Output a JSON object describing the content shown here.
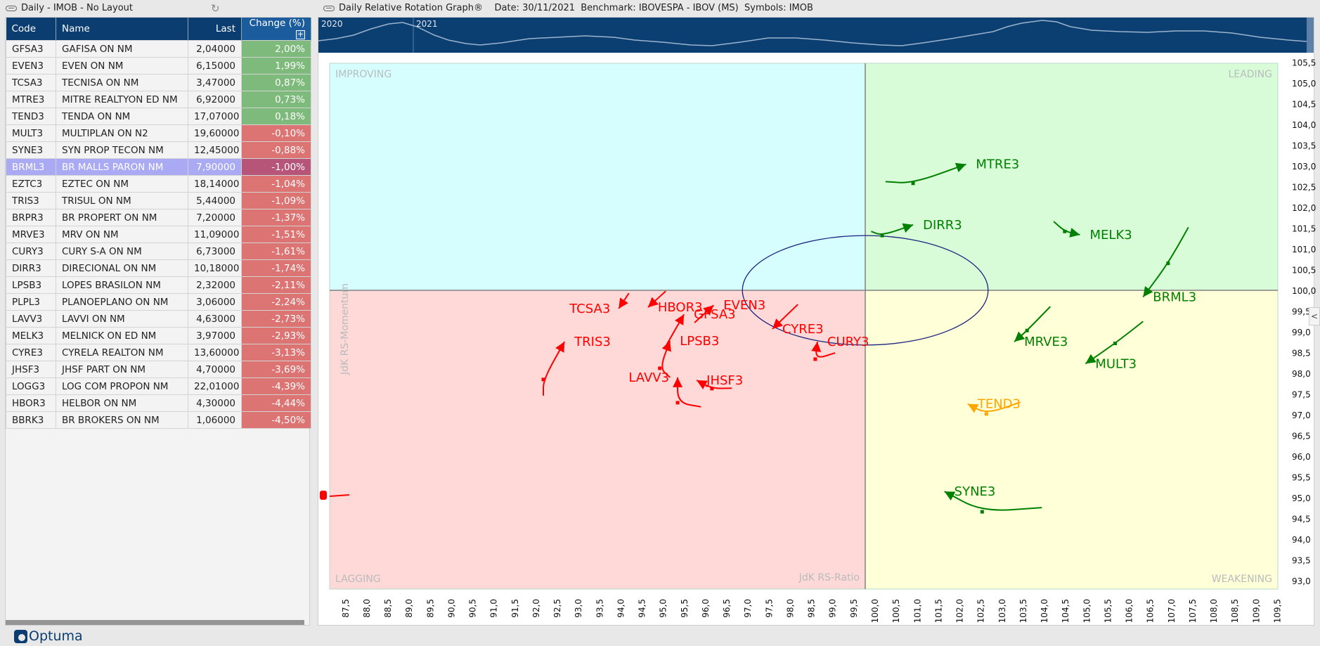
{
  "left_panel": {
    "title": "Daily - IMOB - No Layout",
    "columns": [
      "Code",
      "Name",
      "Last",
      "Change (%)"
    ],
    "rows": [
      {
        "code": "GFSA3",
        "name": "GAFISA  ON  NM",
        "last": "2,04000",
        "change": "2,00%",
        "dir": "pos"
      },
      {
        "code": "EVEN3",
        "name": "EVEN  ON  NM",
        "last": "6,15000",
        "change": "1,99%",
        "dir": "pos"
      },
      {
        "code": "TCSA3",
        "name": "TECNISA ON  NM",
        "last": "3,47000",
        "change": "0,87%",
        "dir": "pos"
      },
      {
        "code": "MTRE3",
        "name": "MITRE REALTYON  ED  NM",
        "last": "6,92000",
        "change": "0,73%",
        "dir": "pos"
      },
      {
        "code": "TEND3",
        "name": "TENDA ON  NM",
        "last": "17,07000",
        "change": "0,18%",
        "dir": "pos"
      },
      {
        "code": "MULT3",
        "name": "MULTIPLAN ON  N2",
        "last": "19,60000",
        "change": "-0,10%",
        "dir": "neg"
      },
      {
        "code": "SYNE3",
        "name": "SYN PROP TECON  NM",
        "last": "12,45000",
        "change": "-0,88%",
        "dir": "neg"
      },
      {
        "code": "BRML3",
        "name": "BR MALLS PARON  NM",
        "last": "7,90000",
        "change": "-1,00%",
        "dir": "neg",
        "selected": true
      },
      {
        "code": "EZTC3",
        "name": "EZTEC ON  NM",
        "last": "18,14000",
        "change": "-1,04%",
        "dir": "neg"
      },
      {
        "code": "TRIS3",
        "name": "TRISUL  ON  NM",
        "last": "5,44000",
        "change": "-1,09%",
        "dir": "neg"
      },
      {
        "code": "BRPR3",
        "name": "BR PROPERT  ON  NM",
        "last": "7,20000",
        "change": "-1,37%",
        "dir": "neg"
      },
      {
        "code": "MRVE3",
        "name": "MRV ON  NM",
        "last": "11,09000",
        "change": "-1,51%",
        "dir": "neg"
      },
      {
        "code": "CURY3",
        "name": "CURY S-A  ON  NM",
        "last": "6,73000",
        "change": "-1,61%",
        "dir": "neg"
      },
      {
        "code": "DIRR3",
        "name": "DIRECIONAL  ON  NM",
        "last": "10,18000",
        "change": "-1,74%",
        "dir": "neg"
      },
      {
        "code": "LPSB3",
        "name": "LOPES BRASILON  NM",
        "last": "2,32000",
        "change": "-2,11%",
        "dir": "neg"
      },
      {
        "code": "PLPL3",
        "name": "PLANOEPLANO ON  NM",
        "last": "3,06000",
        "change": "-2,24%",
        "dir": "neg"
      },
      {
        "code": "LAVV3",
        "name": "LAVVI ON  NM",
        "last": "4,63000",
        "change": "-2,73%",
        "dir": "neg"
      },
      {
        "code": "MELK3",
        "name": "MELNICK ON  ED  NM",
        "last": "3,97000",
        "change": "-2,93%",
        "dir": "neg"
      },
      {
        "code": "CYRE3",
        "name": "CYRELA REALTON  NM",
        "last": "13,60000",
        "change": "-3,13%",
        "dir": "neg"
      },
      {
        "code": "JHSF3",
        "name": "JHSF PART ON  NM",
        "last": "4,70000",
        "change": "-3,69%",
        "dir": "neg"
      },
      {
        "code": "LOGG3",
        "name": "LOG COM PROPON  NM",
        "last": "22,01000",
        "change": "-4,39%",
        "dir": "neg"
      },
      {
        "code": "HBOR3",
        "name": "HELBOR  ON  NM",
        "last": "4,30000",
        "change": "-4,44%",
        "dir": "neg"
      },
      {
        "code": "BBRK3",
        "name": "BR BROKERS  ON  NM",
        "last": "1,06000",
        "change": "-4,50%",
        "dir": "neg"
      }
    ]
  },
  "right_panel": {
    "title": "Daily Relative Rotation Graph®    Date: 30/11/2021  Benchmark: IBOVESPA - IBOV (MS)  Symbols: IMOB",
    "timeline_labels": [
      "2020",
      "2021"
    ]
  },
  "brand": "Optuma",
  "chart_data": {
    "type": "scatter",
    "xlabel": "JdK RS-Ratio",
    "ylabel": "JdK RS-Momentum",
    "xlim": [
      87.34,
      109.75
    ],
    "ylim": [
      92.8,
      105.47
    ],
    "x_ticks": [
      "87,5",
      "88,0",
      "88,5",
      "89,0",
      "89,5",
      "90,0",
      "90,5",
      "91,0",
      "91,5",
      "92,0",
      "92,5",
      "93,0",
      "93,5",
      "94,0",
      "94,5",
      "95,0",
      "95,5",
      "96,0",
      "96,5",
      "97,0",
      "97,5",
      "98,0",
      "98,5",
      "99,0",
      "99,5",
      "100,0",
      "100,5",
      "101,0",
      "101,5",
      "102,0",
      "102,5",
      "103,0",
      "103,5",
      "104,0",
      "104,5",
      "105,0",
      "105,5",
      "106,0",
      "106,5",
      "107,0",
      "107,5",
      "108,0",
      "108,5",
      "109,0",
      "109,5"
    ],
    "y_ticks": [
      "105,5",
      "105,0",
      "104,5",
      "104,0",
      "103,5",
      "103,0",
      "102,5",
      "102,0",
      "101,5",
      "101,0",
      "100,5",
      "100,0",
      "99,5",
      "99,0",
      "98,5",
      "98,0",
      "97,5",
      "97,0",
      "96,5",
      "96,0",
      "95,5",
      "95,0",
      "94,5",
      "94,0",
      "93,5",
      "93,0"
    ],
    "quadrants": {
      "top_left": "IMPROVING",
      "top_right": "LEADING",
      "bottom_left": "LAGGING",
      "bottom_right": "WEAKENING"
    },
    "quadrant_colors": {
      "improving": "#d6feff",
      "leading": "#d8fcd8",
      "lagging": "#ffd8d8",
      "weakening": "#ffffd8"
    },
    "center": [
      100,
      100
    ],
    "ellipse": {
      "cx": 100,
      "cy": 100,
      "rx": 2.9,
      "ry": 1.32,
      "color": "#1a237e"
    },
    "series": [
      {
        "name": "MTRE3",
        "color": "#008000",
        "points": [
          [
            100.48,
            102.62
          ],
          [
            101.13,
            102.58
          ],
          [
            102.38,
            103.04
          ]
        ]
      },
      {
        "name": "DIRR3",
        "color": "#008000",
        "points": [
          [
            100.14,
            101.42
          ],
          [
            100.4,
            101.32
          ],
          [
            101.13,
            101.58
          ]
        ]
      },
      {
        "name": "MELK3",
        "color": "#008000",
        "points": [
          [
            104.45,
            101.66
          ],
          [
            104.71,
            101.42
          ],
          [
            105.07,
            101.34
          ]
        ]
      },
      {
        "name": "BRML3",
        "color": "#008000",
        "points": [
          [
            107.63,
            101.52
          ],
          [
            107.15,
            100.65
          ],
          [
            106.56,
            99.84
          ]
        ]
      },
      {
        "name": "MRVE3",
        "color": "#008000",
        "points": [
          [
            104.37,
            99.61
          ],
          [
            103.82,
            99.03
          ],
          [
            103.52,
            98.76
          ]
        ]
      },
      {
        "name": "MULT3",
        "color": "#008000",
        "points": [
          [
            106.56,
            99.25
          ],
          [
            105.9,
            98.72
          ],
          [
            105.2,
            98.23
          ]
        ]
      },
      {
        "name": "TEND3",
        "color": "#ffa500",
        "points": [
          [
            103.66,
            97.3
          ],
          [
            102.86,
            97.02
          ],
          [
            102.42,
            97.26
          ]
        ]
      },
      {
        "name": "SYNE3",
        "color": "#008000",
        "points": [
          [
            104.17,
            94.76
          ],
          [
            102.76,
            94.66
          ],
          [
            101.87,
            95.15
          ]
        ]
      },
      {
        "name": "CYRE3",
        "color": "#ff0000",
        "points": [
          [
            98.41,
            99.66
          ],
          [
            97.81,
            99.07
          ]
        ]
      },
      {
        "name": "CURY3",
        "color": "#ff0000",
        "points": [
          [
            99.29,
            98.49
          ],
          [
            98.82,
            98.34
          ],
          [
            98.87,
            98.76
          ]
        ]
      },
      {
        "name": "TCSA3",
        "color": "#ff0000",
        "points": [
          [
            94.42,
            99.93
          ],
          [
            94.18,
            99.56
          ]
        ]
      },
      {
        "name": "HBOR3",
        "color": "#ff0000",
        "points": [
          [
            95.29,
            99.98
          ],
          [
            94.87,
            99.59
          ]
        ]
      },
      {
        "name": "GFSA3",
        "color": "#ff0000",
        "points": [
          [
            95.25,
            98.58
          ],
          [
            95.72,
            99.42
          ]
        ]
      },
      {
        "name": "EVEN3",
        "color": "#ff0000",
        "points": [
          [
            95.97,
            99.22
          ],
          [
            96.42,
            99.64
          ]
        ]
      },
      {
        "name": "LPSB3",
        "color": "#ff0000",
        "points": [
          [
            95.39,
            97.9
          ],
          [
            95.15,
            98.12
          ],
          [
            95.39,
            98.78
          ]
        ]
      },
      {
        "name": "LAVV3",
        "color": "#ff0000",
        "points": [
          [
            96.12,
            97.19
          ],
          [
            95.57,
            97.29
          ],
          [
            95.57,
            97.9
          ]
        ]
      },
      {
        "name": "JHSF3",
        "color": "#ff0000",
        "points": [
          [
            96.85,
            97.64
          ],
          [
            96.38,
            97.63
          ],
          [
            96.02,
            97.83
          ]
        ]
      },
      {
        "name": "TRIS3",
        "color": "#ff0000",
        "points": [
          [
            92.4,
            97.46
          ],
          [
            92.4,
            97.85
          ],
          [
            92.9,
            98.76
          ]
        ]
      }
    ]
  }
}
